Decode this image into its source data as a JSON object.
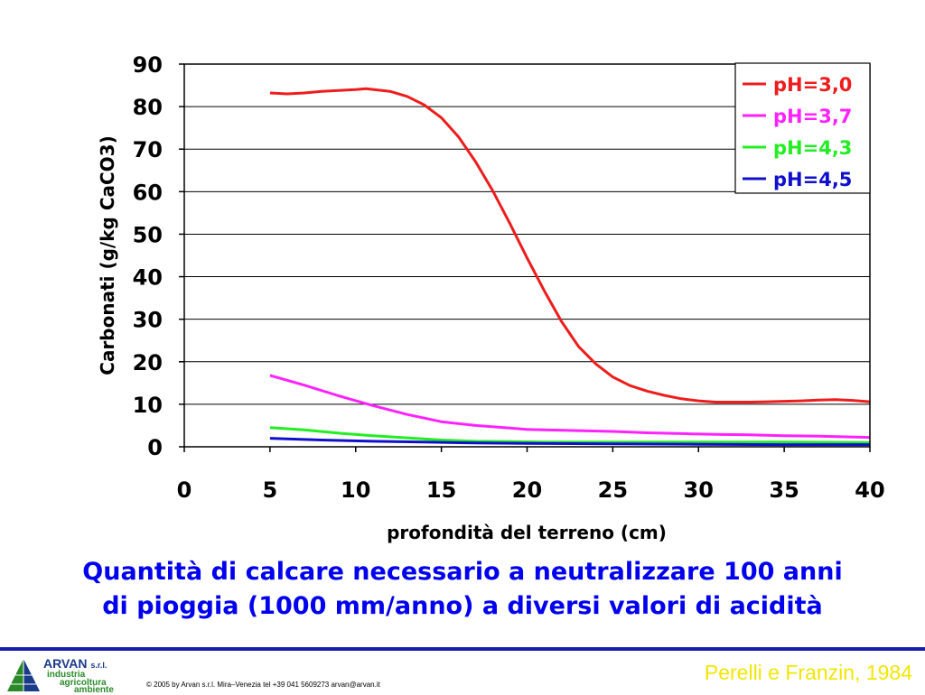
{
  "chart_data": {
    "type": "line",
    "xlabel": "profondità del terreno (cm)",
    "ylabel": "Carbonati (g/kg CaCO3)",
    "xlim": [
      0,
      40
    ],
    "ylim": [
      0,
      90
    ],
    "xticks": [
      0,
      5,
      10,
      15,
      20,
      25,
      30,
      35,
      40
    ],
    "yticks": [
      0,
      10,
      20,
      30,
      40,
      50,
      60,
      70,
      80,
      90
    ],
    "grid": "horizontal",
    "legend": "top-right",
    "series": [
      {
        "name": "pH=3,0",
        "color": "#ee1c1c",
        "x": [
          5,
          6,
          7,
          8,
          9,
          10,
          10.6,
          12,
          13,
          14,
          15,
          16,
          17,
          18,
          19,
          20,
          21,
          22,
          23,
          24,
          25,
          26,
          27,
          28,
          29,
          30,
          31,
          32,
          33,
          34,
          35,
          36,
          37,
          38,
          39,
          40
        ],
        "y": [
          83.2,
          83,
          83.2,
          83.6,
          83.8,
          84,
          84.2,
          83.6,
          82.4,
          80.4,
          77.4,
          72.9,
          67,
          60.2,
          52.5,
          44.4,
          36.7,
          29.5,
          23.6,
          19.5,
          16.4,
          14.4,
          13.1,
          12.1,
          11.3,
          10.8,
          10.5,
          10.5,
          10.5,
          10.6,
          10.7,
          10.8,
          11,
          11.1,
          10.9,
          10.6
        ]
      },
      {
        "name": "pH=3,7",
        "color": "#ff22ff",
        "x": [
          5,
          7,
          9,
          11,
          13,
          15,
          17,
          19,
          20,
          21,
          23,
          25,
          27,
          29,
          31,
          33,
          35,
          37,
          40
        ],
        "y": [
          16.8,
          14.5,
          12,
          9.7,
          7.6,
          5.9,
          5,
          4.4,
          4.1,
          4,
          3.8,
          3.6,
          3.3,
          3.1,
          2.9,
          2.8,
          2.6,
          2.5,
          2.2
        ]
      },
      {
        "name": "pH=4,3",
        "color": "#22ee22",
        "x": [
          5,
          7,
          9,
          11,
          13,
          15,
          17,
          19,
          21,
          25,
          30,
          35,
          40
        ],
        "y": [
          4.5,
          4,
          3.2,
          2.6,
          2.1,
          1.6,
          1.3,
          1.2,
          1.1,
          1.1,
          1.1,
          1.1,
          1
        ]
      },
      {
        "name": "pH=4,5",
        "color": "#1010cc",
        "x": [
          5,
          8,
          11,
          14,
          17,
          20,
          25,
          30,
          35,
          40
        ],
        "y": [
          2,
          1.6,
          1.3,
          1.1,
          0.9,
          0.8,
          0.7,
          0.6,
          0.5,
          0.5
        ]
      }
    ]
  },
  "caption": {
    "line1": "Quantità di calcare necessario a neutralizzare 100 anni",
    "line2": "di pioggia (1000 mm/anno) a diversi valori di acidità"
  },
  "footer": {
    "logo_name": "ARVAN",
    "logo_suffix": "s.r.l.",
    "logo_sub1": "industria",
    "logo_sub2": "agricoltura",
    "logo_sub3": "ambiente",
    "copyright": "© 2005 by Arvan s.r.l. Mira–Venezia tel +39 041 5609273 arvan@arvan.it",
    "source": "Perelli e Franzin, 1984"
  }
}
